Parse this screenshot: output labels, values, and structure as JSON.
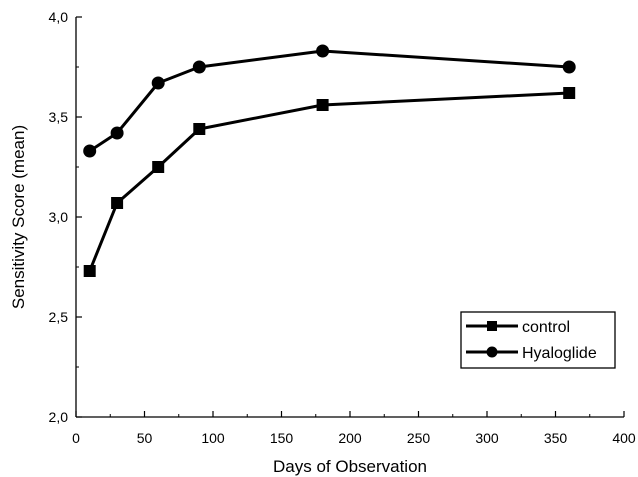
{
  "chart_data": {
    "type": "line",
    "xlabel": "Days of Observation",
    "ylabel": "Sensitivity Score (mean)",
    "xlim": [
      0,
      400
    ],
    "ylim": [
      2.0,
      4.0
    ],
    "xticks": [
      0,
      50,
      100,
      150,
      200,
      250,
      300,
      350,
      400
    ],
    "yticks": [
      2.0,
      2.5,
      3.0,
      3.5,
      4.0
    ],
    "xtick_labels": [
      "0",
      "50",
      "100",
      "150",
      "200",
      "250",
      "300",
      "350",
      "400"
    ],
    "ytick_labels": [
      "2,0",
      "2,5",
      "3,0",
      "3,5",
      "4,0"
    ],
    "grid": false,
    "legend_position": "bottom-right",
    "series": [
      {
        "name": "control",
        "marker": "square",
        "color": "#000000",
        "x": [
          10,
          30,
          60,
          90,
          180,
          360
        ],
        "y": [
          2.73,
          3.07,
          3.25,
          3.44,
          3.56,
          3.62
        ]
      },
      {
        "name": "Hyaloglide",
        "marker": "circle",
        "color": "#000000",
        "x": [
          10,
          30,
          60,
          90,
          180,
          360
        ],
        "y": [
          3.33,
          3.42,
          3.67,
          3.75,
          3.83,
          3.75
        ]
      }
    ]
  }
}
